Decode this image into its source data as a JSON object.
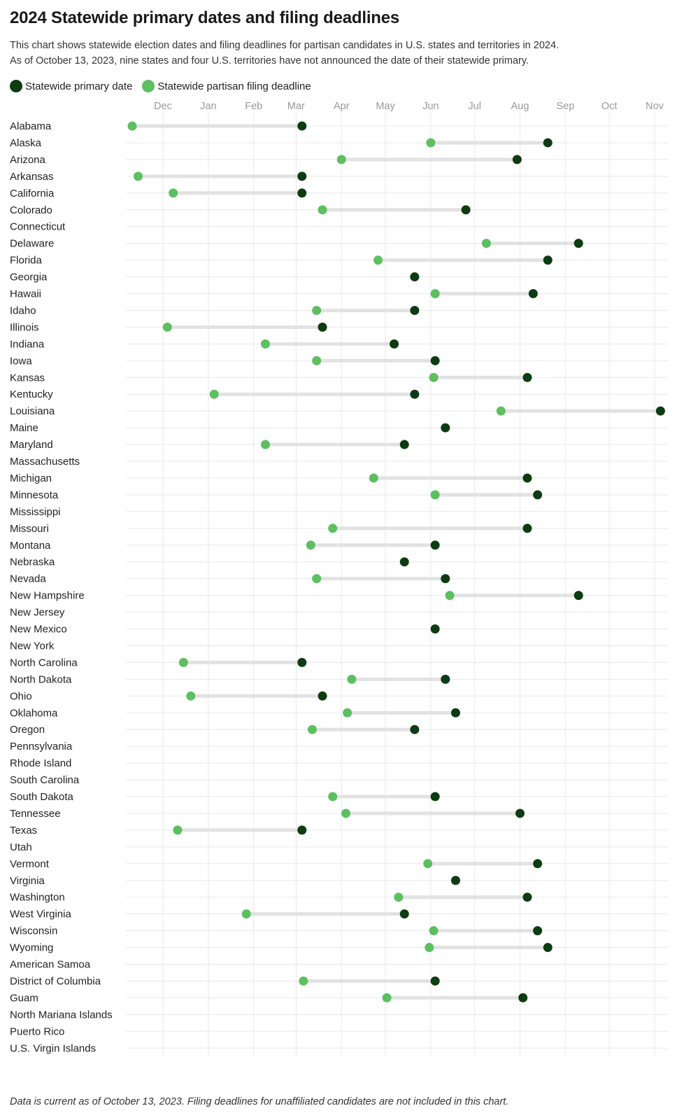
{
  "title": "2024 Statewide primary dates and filing deadlines",
  "subtitle_lines": [
    "This chart shows statewide election dates and filing deadlines for partisan candidates in U.S. states and territories in 2024.",
    "As of October 13, 2023, nine states and four U.S. territories have not announced the date of their statewide primary."
  ],
  "legend": {
    "primary_label": "Statewide primary date",
    "filing_label": "Statewide partisan filing deadline"
  },
  "colors": {
    "primary": "#0d3b12",
    "filing": "#5cbf60",
    "connector": "#e2e2e2",
    "grid": "#e8e8e8"
  },
  "footnote": "Data is current as of October 13, 2023. Filing deadlines for unaffiliated candidates are not included in this chart.",
  "chart_data": {
    "type": "dumbbell",
    "x_axis": {
      "ticks": [
        "Dec",
        "Jan",
        "Feb",
        "Mar",
        "Apr",
        "May",
        "Jun",
        "Jul",
        "Aug",
        "Sep",
        "Oct",
        "Nov"
      ],
      "tick_dates": [
        "2023-12-01",
        "2024-01-01",
        "2024-02-01",
        "2024-03-01",
        "2024-04-01",
        "2024-05-01",
        "2024-06-01",
        "2024-07-01",
        "2024-08-01",
        "2024-09-01",
        "2024-10-01",
        "2024-11-01"
      ],
      "range": [
        "2023-11-06",
        "2024-11-08"
      ]
    },
    "grid": true,
    "legend_position": "top-left",
    "series": [
      {
        "name": "Statewide primary date",
        "key": "primary"
      },
      {
        "name": "Statewide partisan filing deadline",
        "key": "filing"
      }
    ],
    "rows": [
      {
        "state": "Alabama",
        "filing": "2023-11-10",
        "primary": "2024-03-05"
      },
      {
        "state": "Alaska",
        "filing": "2024-06-01",
        "primary": "2024-08-20"
      },
      {
        "state": "Arizona",
        "filing": "2024-04-01",
        "primary": "2024-07-30"
      },
      {
        "state": "Arkansas",
        "filing": "2023-11-14",
        "primary": "2024-03-05"
      },
      {
        "state": "California",
        "filing": "2023-12-08",
        "primary": "2024-03-05"
      },
      {
        "state": "Colorado",
        "filing": "2024-03-19",
        "primary": "2024-06-25"
      },
      {
        "state": "Connecticut",
        "filing": null,
        "primary": null
      },
      {
        "state": "Delaware",
        "filing": "2024-07-09",
        "primary": "2024-09-10"
      },
      {
        "state": "Florida",
        "filing": "2024-04-26",
        "primary": "2024-08-20"
      },
      {
        "state": "Georgia",
        "filing": null,
        "primary": "2024-05-21"
      },
      {
        "state": "Hawaii",
        "filing": "2024-06-04",
        "primary": "2024-08-10"
      },
      {
        "state": "Idaho",
        "filing": "2024-03-15",
        "primary": "2024-05-21"
      },
      {
        "state": "Illinois",
        "filing": "2023-12-04",
        "primary": "2024-03-19"
      },
      {
        "state": "Indiana",
        "filing": "2024-02-09",
        "primary": "2024-05-07"
      },
      {
        "state": "Iowa",
        "filing": "2024-03-15",
        "primary": "2024-06-04"
      },
      {
        "state": "Kansas",
        "filing": "2024-06-03",
        "primary": "2024-08-06"
      },
      {
        "state": "Kentucky",
        "filing": "2024-01-05",
        "primary": "2024-05-21"
      },
      {
        "state": "Louisiana",
        "filing": "2024-07-19",
        "primary": "2024-11-05"
      },
      {
        "state": "Maine",
        "filing": null,
        "primary": "2024-06-11"
      },
      {
        "state": "Maryland",
        "filing": "2024-02-09",
        "primary": "2024-05-14"
      },
      {
        "state": "Massachusetts",
        "filing": null,
        "primary": null
      },
      {
        "state": "Michigan",
        "filing": "2024-04-23",
        "primary": "2024-08-06"
      },
      {
        "state": "Minnesota",
        "filing": "2024-06-04",
        "primary": "2024-08-13"
      },
      {
        "state": "Mississippi",
        "filing": null,
        "primary": null
      },
      {
        "state": "Missouri",
        "filing": "2024-03-26",
        "primary": "2024-08-06"
      },
      {
        "state": "Montana",
        "filing": "2024-03-11",
        "primary": "2024-06-04"
      },
      {
        "state": "Nebraska",
        "filing": null,
        "primary": "2024-05-14"
      },
      {
        "state": "Nevada",
        "filing": "2024-03-15",
        "primary": "2024-06-11"
      },
      {
        "state": "New Hampshire",
        "filing": "2024-06-14",
        "primary": "2024-09-10"
      },
      {
        "state": "New Jersey",
        "filing": null,
        "primary": null
      },
      {
        "state": "New Mexico",
        "filing": null,
        "primary": "2024-06-04"
      },
      {
        "state": "New York",
        "filing": null,
        "primary": null
      },
      {
        "state": "North Carolina",
        "filing": "2023-12-15",
        "primary": "2024-03-05"
      },
      {
        "state": "North Dakota",
        "filing": "2024-04-08",
        "primary": "2024-06-11"
      },
      {
        "state": "Ohio",
        "filing": "2023-12-20",
        "primary": "2024-03-19"
      },
      {
        "state": "Oklahoma",
        "filing": "2024-04-05",
        "primary": "2024-06-18"
      },
      {
        "state": "Oregon",
        "filing": "2024-03-12",
        "primary": "2024-05-21"
      },
      {
        "state": "Pennsylvania",
        "filing": null,
        "primary": null
      },
      {
        "state": "Rhode Island",
        "filing": null,
        "primary": null
      },
      {
        "state": "South Carolina",
        "filing": null,
        "primary": null
      },
      {
        "state": "South Dakota",
        "filing": "2024-03-26",
        "primary": "2024-06-04"
      },
      {
        "state": "Tennessee",
        "filing": "2024-04-04",
        "primary": "2024-08-01"
      },
      {
        "state": "Texas",
        "filing": "2023-12-11",
        "primary": "2024-03-05"
      },
      {
        "state": "Utah",
        "filing": null,
        "primary": null
      },
      {
        "state": "Vermont",
        "filing": "2024-05-30",
        "primary": "2024-08-13"
      },
      {
        "state": "Virginia",
        "filing": null,
        "primary": "2024-06-18"
      },
      {
        "state": "Washington",
        "filing": "2024-05-10",
        "primary": "2024-08-06"
      },
      {
        "state": "West Virginia",
        "filing": "2024-01-27",
        "primary": "2024-05-14"
      },
      {
        "state": "Wisconsin",
        "filing": "2024-06-03",
        "primary": "2024-08-13"
      },
      {
        "state": "Wyoming",
        "filing": "2024-05-31",
        "primary": "2024-08-20"
      },
      {
        "state": "American Samoa",
        "filing": null,
        "primary": null
      },
      {
        "state": "District of Columbia",
        "filing": "2024-03-06",
        "primary": "2024-06-04"
      },
      {
        "state": "Guam",
        "filing": "2024-05-02",
        "primary": "2024-08-03"
      },
      {
        "state": "North Mariana Islands",
        "filing": null,
        "primary": null
      },
      {
        "state": "Puerto Rico",
        "filing": null,
        "primary": null
      },
      {
        "state": "U.S. Virgin Islands",
        "filing": null,
        "primary": null
      }
    ]
  }
}
